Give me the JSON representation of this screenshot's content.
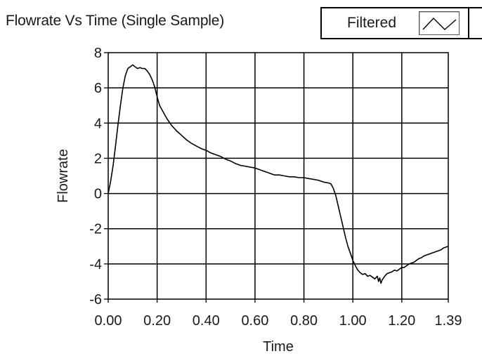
{
  "title": "Flowrate Vs Time (Single Sample)",
  "legend": {
    "label": "Filtered",
    "icon": "line-plot-icon"
  },
  "chart_data": {
    "type": "line",
    "title": "Flowrate Vs Time (Single Sample)",
    "xlabel": "Time",
    "ylabel": "Flowrate",
    "xlim": [
      0,
      1.39
    ],
    "ylim": [
      -6,
      8
    ],
    "grid": true,
    "legend_position": "top-right",
    "x_ticks": [
      0.0,
      0.2,
      0.4,
      0.6,
      0.8,
      1.0,
      1.2,
      1.39
    ],
    "x_tick_labels": [
      "0.00",
      "0.20",
      "0.40",
      "0.60",
      "0.80",
      "1.00",
      "1.20",
      "1.39"
    ],
    "y_ticks": [
      8,
      6,
      4,
      2,
      0,
      -2,
      -4,
      -6
    ],
    "y_tick_labels": [
      "8",
      "6",
      "4",
      "2",
      "0",
      "-2",
      "-4",
      "-6"
    ],
    "series": [
      {
        "name": "Filtered",
        "color": "#000000",
        "x": [
          0.0,
          0.01,
          0.02,
          0.03,
          0.04,
          0.05,
          0.06,
          0.07,
          0.08,
          0.09,
          0.1,
          0.11,
          0.12,
          0.13,
          0.14,
          0.15,
          0.16,
          0.17,
          0.18,
          0.19,
          0.2,
          0.21,
          0.22,
          0.23,
          0.24,
          0.26,
          0.28,
          0.3,
          0.32,
          0.34,
          0.36,
          0.38,
          0.4,
          0.42,
          0.44,
          0.46,
          0.48,
          0.5,
          0.52,
          0.54,
          0.56,
          0.58,
          0.6,
          0.62,
          0.64,
          0.66,
          0.68,
          0.7,
          0.72,
          0.74,
          0.76,
          0.78,
          0.8,
          0.82,
          0.84,
          0.86,
          0.88,
          0.9,
          0.91,
          0.92,
          0.93,
          0.94,
          0.95,
          0.96,
          0.97,
          0.98,
          0.99,
          1.0,
          1.01,
          1.02,
          1.03,
          1.04,
          1.05,
          1.06,
          1.07,
          1.08,
          1.09,
          1.1,
          1.105,
          1.11,
          1.115,
          1.12,
          1.13,
          1.14,
          1.15,
          1.16,
          1.17,
          1.18,
          1.19,
          1.2,
          1.21,
          1.22,
          1.23,
          1.24,
          1.25,
          1.26,
          1.27,
          1.28,
          1.29,
          1.3,
          1.31,
          1.32,
          1.33,
          1.34,
          1.35,
          1.36,
          1.37,
          1.38,
          1.39
        ],
        "y": [
          0.0,
          0.7,
          1.6,
          2.7,
          3.9,
          5.0,
          6.0,
          6.7,
          7.1,
          7.2,
          7.3,
          7.2,
          7.1,
          7.15,
          7.1,
          7.1,
          6.95,
          6.75,
          6.45,
          6.05,
          5.5,
          5.0,
          4.75,
          4.5,
          4.25,
          3.85,
          3.55,
          3.3,
          3.05,
          2.85,
          2.7,
          2.55,
          2.45,
          2.3,
          2.2,
          2.1,
          1.95,
          1.85,
          1.7,
          1.6,
          1.55,
          1.5,
          1.45,
          1.35,
          1.25,
          1.15,
          1.05,
          1.05,
          1.0,
          0.95,
          0.95,
          0.9,
          0.9,
          0.85,
          0.8,
          0.75,
          0.65,
          0.6,
          0.55,
          0.3,
          -0.1,
          -0.7,
          -1.3,
          -1.9,
          -2.5,
          -3.0,
          -3.4,
          -3.8,
          -4.1,
          -4.35,
          -4.5,
          -4.6,
          -4.55,
          -4.7,
          -4.65,
          -4.75,
          -4.85,
          -4.7,
          -5.0,
          -4.8,
          -5.1,
          -4.9,
          -4.7,
          -4.55,
          -4.5,
          -4.45,
          -4.35,
          -4.4,
          -4.3,
          -4.2,
          -4.2,
          -4.1,
          -4.0,
          -3.95,
          -3.9,
          -3.8,
          -3.7,
          -3.65,
          -3.55,
          -3.5,
          -3.45,
          -3.4,
          -3.35,
          -3.3,
          -3.25,
          -3.2,
          -3.1,
          -3.05,
          -3.0
        ]
      }
    ]
  }
}
